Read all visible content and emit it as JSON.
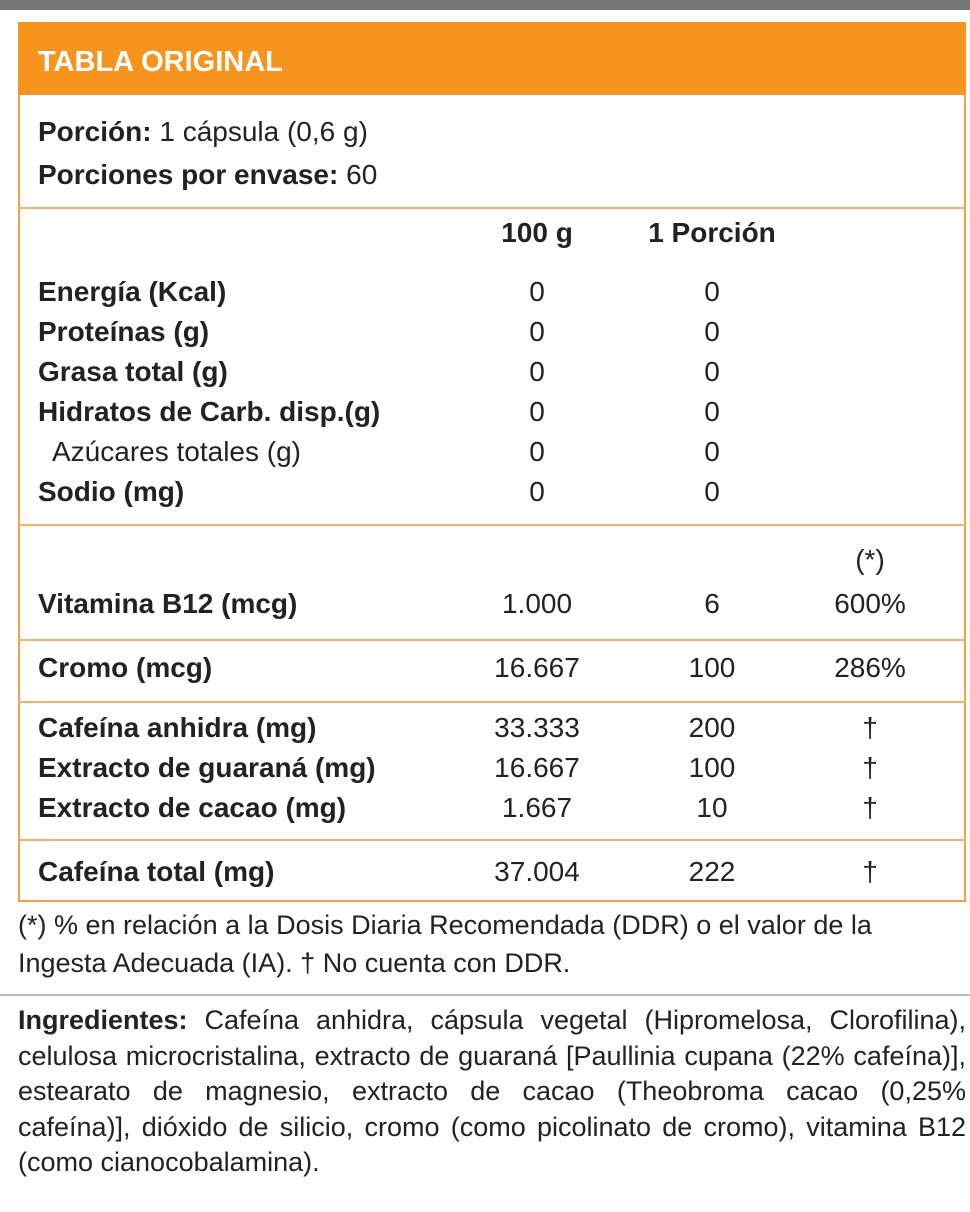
{
  "header": {
    "title": "TABLA ORIGINAL"
  },
  "serving": {
    "portion_label": "Porción:",
    "portion_value": "1 cápsula (0,6 g)",
    "servings_label": "Porciones por envase:",
    "servings_value": "60"
  },
  "table": {
    "columns": [
      "100 g",
      "1 Porción"
    ],
    "dv_marker": "(*)",
    "sections": [
      {
        "rows": [
          {
            "label": "Energía (Kcal)",
            "per_100g": "0",
            "per_portion": "0"
          },
          {
            "label": "Proteínas (g)",
            "per_100g": "0",
            "per_portion": "0"
          },
          {
            "label": "Grasa total (g)",
            "per_100g": "0",
            "per_portion": "0"
          },
          {
            "label": "Hidratos de Carb. disp.(g)",
            "per_100g": "0",
            "per_portion": "0",
            "subrows": [
              {
                "label": "Azúcares totales (g)",
                "per_100g": "0",
                "per_portion": "0"
              }
            ]
          },
          {
            "label": "Sodio (mg)",
            "per_100g": "0",
            "per_portion": "0"
          }
        ]
      },
      {
        "rows": [
          {
            "label": "Vitamina B12 (mcg)",
            "per_100g": "1.000",
            "per_portion": "6",
            "dv": "600%"
          }
        ]
      },
      {
        "rows": [
          {
            "label": "Cromo (mcg)",
            "per_100g": "16.667",
            "per_portion": "100",
            "dv": "286%"
          }
        ]
      },
      {
        "rows": [
          {
            "label": "Cafeína anhidra (mg)",
            "per_100g": "33.333",
            "per_portion": "200",
            "dv": "†"
          },
          {
            "label": "Extracto de guaraná (mg)",
            "per_100g": "16.667",
            "per_portion": "100",
            "dv": "†"
          },
          {
            "label": "Extracto de cacao (mg)",
            "per_100g": "1.667",
            "per_portion": "10",
            "dv": "†"
          }
        ]
      },
      {
        "rows": [
          {
            "label": "Cafeína total (mg)",
            "per_100g": "37.004",
            "per_portion": "222",
            "dv": "†"
          }
        ]
      }
    ]
  },
  "footnote": "(*) % en relación a la Dosis Diaria Recomendada (DDR) o el valor de la Ingesta Adecuada (IA). † No cuenta con DDR.",
  "ingredients": {
    "label": "Ingredientes:",
    "text": "Cafeína anhidra, cápsula vegetal (Hipromelosa, Clorofilina), celulosa microcristalina, extracto de guaraná [Paullinia cupana (22% cafeína)], estearato de magnesio, extracto de cacao (Theobroma cacao (0,25% cafeína)], dióxido de silicio, cromo (como picolinato de cromo), vitamina B12 (como cianocobalamina)."
  }
}
